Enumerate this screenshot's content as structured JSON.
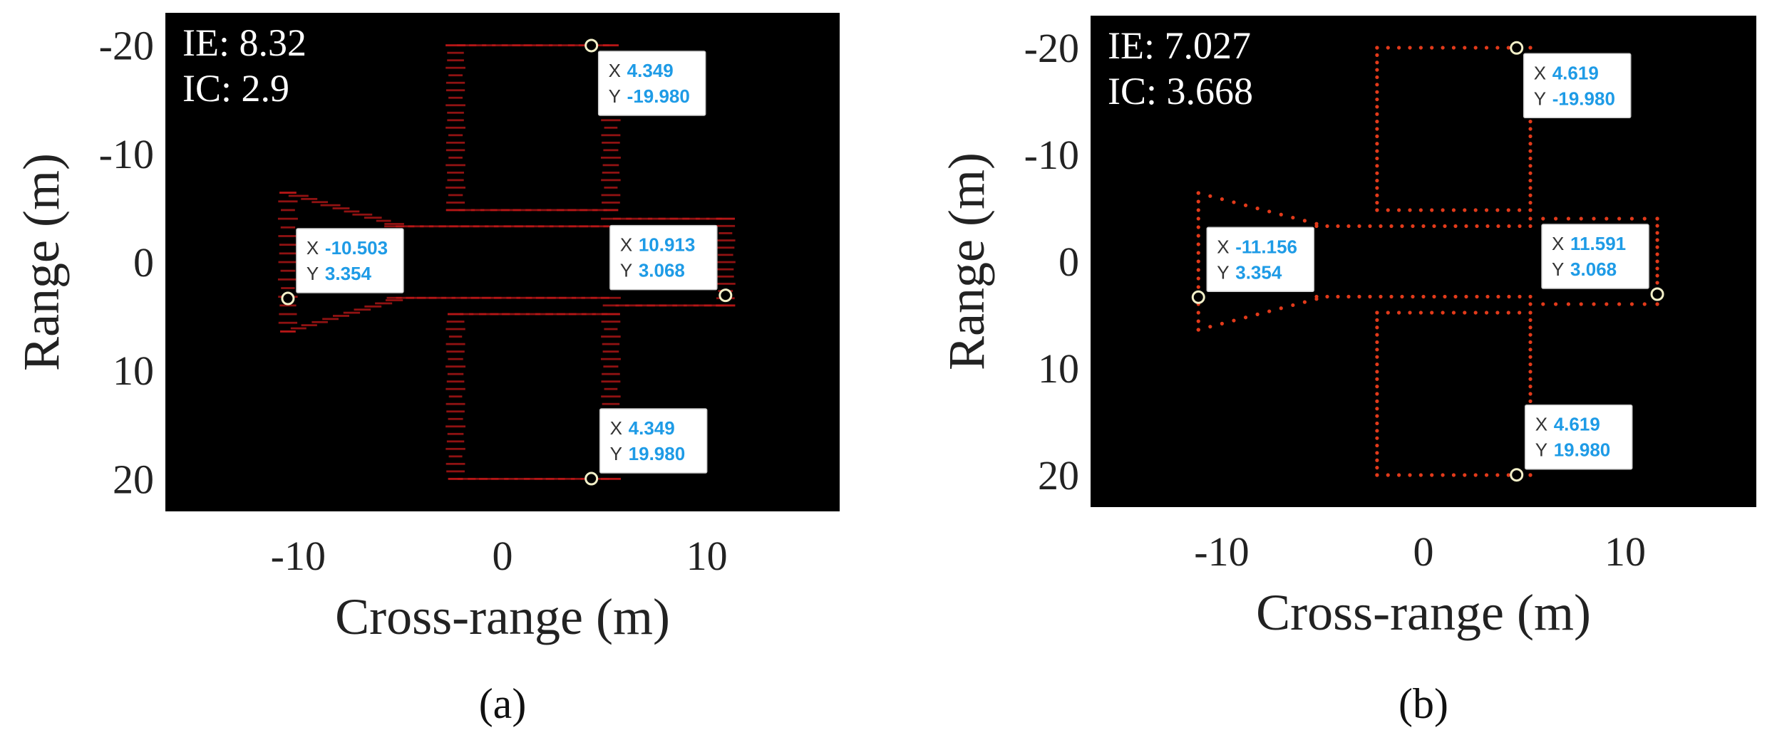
{
  "chart_data": [
    {
      "type": "scatter",
      "panel_label": "(a)",
      "xlabel": "Cross-range (m)",
      "ylabel": "Range (m)",
      "xlim": [
        -16.5,
        16.5
      ],
      "ylim": [
        -23,
        23
      ],
      "y_reversed": true,
      "xticks": [
        -10,
        0,
        10
      ],
      "xtick_labels": [
        "-10",
        "0",
        "10"
      ],
      "yticks": [
        -20,
        -10,
        0,
        10,
        20
      ],
      "ytick_labels": [
        "-20",
        "-10",
        "0",
        "10",
        "20"
      ],
      "background": "#000000",
      "point_color": "#c01818",
      "defocus": 1.0,
      "annotations": {
        "ie": "IE: 8.32",
        "ic": "IC: 2.9"
      },
      "datatips": [
        {
          "x": 4.349,
          "y": -19.98,
          "x_text": "4.349",
          "y_text": "-19.980",
          "box_corner": "top-left"
        },
        {
          "x": -10.503,
          "y": 3.354,
          "x_text": "-10.503",
          "y_text": "3.354",
          "box_corner": "bottom-left"
        },
        {
          "x": 10.913,
          "y": 3.068,
          "x_text": "10.913",
          "y_text": "3.068",
          "box_corner": "bottom-right"
        },
        {
          "x": 4.349,
          "y": 19.98,
          "x_text": "4.349",
          "y_text": "19.980",
          "box_corner": "bottom-left"
        }
      ],
      "outline": {
        "fuselage_y": [
          -3.3,
          3.3
        ],
        "fuselage_x": [
          -5.3,
          10.913
        ],
        "nose": {
          "tip_x": -10.503,
          "half_span": 6.4,
          "base_x": -5.3
        },
        "tail": {
          "base_x": 5.3,
          "tip_x": 10.913,
          "half_span": 4.0
        },
        "wing_x": [
          -2.3,
          5.3
        ],
        "wing_y": [
          [
            -20,
            -4.8
          ],
          [
            4.8,
            20
          ]
        ]
      }
    },
    {
      "type": "scatter",
      "panel_label": "(b)",
      "xlabel": "Cross-range (m)",
      "ylabel": "Range (m)",
      "xlim": [
        -16.5,
        16.5
      ],
      "ylim": [
        -23,
        23
      ],
      "y_reversed": true,
      "xticks": [
        -10,
        0,
        10
      ],
      "xtick_labels": [
        "-10",
        "0",
        "10"
      ],
      "yticks": [
        -20,
        -10,
        0,
        10,
        20
      ],
      "ytick_labels": [
        "-20",
        "-10",
        "0",
        "10",
        "20"
      ],
      "background": "#000000",
      "point_color": "#e23a1a",
      "defocus": 0.0,
      "annotations": {
        "ie": "IE: 7.027",
        "ic": "IC: 3.668"
      },
      "datatips": [
        {
          "x": 4.619,
          "y": -19.98,
          "x_text": "4.619",
          "y_text": "-19.980",
          "box_corner": "top-left"
        },
        {
          "x": -11.156,
          "y": 3.354,
          "x_text": "-11.156",
          "y_text": "3.354",
          "box_corner": "bottom-left"
        },
        {
          "x": 11.591,
          "y": 3.068,
          "x_text": "11.591",
          "y_text": "3.068",
          "box_corner": "bottom-right"
        },
        {
          "x": 4.619,
          "y": 19.98,
          "x_text": "4.619",
          "y_text": "19.980",
          "box_corner": "bottom-left"
        }
      ],
      "outline": {
        "fuselage_y": [
          -3.3,
          3.3
        ],
        "fuselage_x": [
          -5.3,
          11.591
        ],
        "nose": {
          "tip_x": -11.156,
          "half_span": 6.4,
          "base_x": -5.3
        },
        "tail": {
          "base_x": 5.3,
          "tip_x": 11.591,
          "half_span": 4.0
        },
        "wing_x": [
          -2.3,
          5.3
        ],
        "wing_y": [
          [
            -20,
            -4.8
          ],
          [
            4.8,
            20
          ]
        ]
      }
    }
  ],
  "datatip_labels": {
    "x_key": "X",
    "y_key": "Y"
  }
}
